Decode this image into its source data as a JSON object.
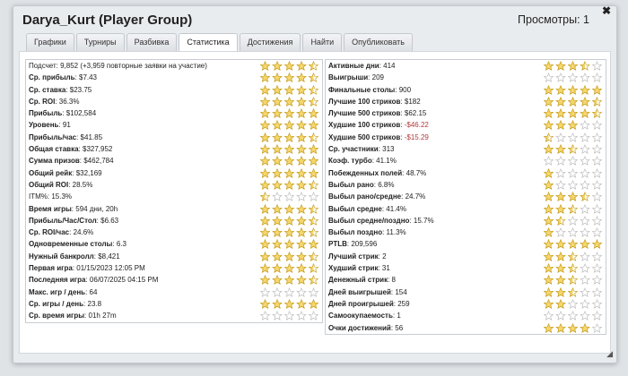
{
  "window": {
    "title": "Darya_Kurt (Player Group)",
    "views": "Просмотры: 1",
    "close_icon": "✖"
  },
  "tabs": [
    {
      "label": "Графики",
      "active": false
    },
    {
      "label": "Турниры",
      "active": false
    },
    {
      "label": "Разбивка",
      "active": false
    },
    {
      "label": "Статистика",
      "active": true
    },
    {
      "label": "Достижения",
      "active": false
    },
    {
      "label": "Найти",
      "active": false
    },
    {
      "label": "Опубликовать",
      "active": false
    }
  ],
  "left": [
    {
      "label": "Подсчет",
      "value": "9,852 (+3,959 повторные заявки на участие)",
      "bold": false,
      "rating": 4.5
    },
    {
      "label": "Ср. прибыль",
      "value": "$7.43",
      "bold": true,
      "rating": 4.5
    },
    {
      "label": "Ср. ставка",
      "value": "$23.75",
      "bold": true,
      "rating": 4.5
    },
    {
      "label": "Ср. ROI",
      "value": "36.3%",
      "bold": true,
      "rating": 4.5
    },
    {
      "label": "Прибыль",
      "value": "$102,584",
      "bold": true,
      "rating": 5
    },
    {
      "label": "Уровень",
      "value": "91",
      "bold": true,
      "rating": 5
    },
    {
      "label": "Прибыль/час",
      "value": "$41.85",
      "bold": true,
      "rating": 4.5
    },
    {
      "label": "Общая ставка",
      "value": "$327,952",
      "bold": true,
      "rating": 5
    },
    {
      "label": "Сумма призов",
      "value": "$462,784",
      "bold": true,
      "rating": 5
    },
    {
      "label": "Общий рейк",
      "value": "$32,169",
      "bold": true,
      "rating": 5
    },
    {
      "label": "Общий ROI",
      "value": "28.5%",
      "bold": true,
      "rating": 4.5
    },
    {
      "label": "ITM%",
      "value": "15.3%",
      "bold": false,
      "rating": 0.5
    },
    {
      "label": "Время игры",
      "value": "594 дни, 20h",
      "bold": true,
      "rating": 4.5
    },
    {
      "label": "Прибыль/Час/Стол",
      "value": "$6.63",
      "bold": true,
      "rating": 4.5
    },
    {
      "label": "Ср. ROI/час",
      "value": "24.6%",
      "bold": true,
      "rating": 4.5
    },
    {
      "label": "Одновременные столы",
      "value": "6.3",
      "bold": true,
      "rating": 5
    },
    {
      "label": "Нужный банкролл",
      "value": "$8,421",
      "bold": true,
      "rating": 4.5
    },
    {
      "label": "Первая игра",
      "value": "01/15/2023 12:05 PM",
      "bold": true,
      "rating": 4.5
    },
    {
      "label": "Последняя игра",
      "value": "06/07/2025 04:15 PM",
      "bold": true,
      "rating": 4.5
    },
    {
      "label": "Макс. игр / день",
      "value": "64",
      "bold": true,
      "rating": 0
    },
    {
      "label": "Ср. игры / день",
      "value": "23.8",
      "bold": true,
      "rating": 5
    },
    {
      "label": "Ср. время игры",
      "value": "01h 27m",
      "bold": true,
      "rating": 0
    }
  ],
  "right": [
    {
      "label": "Активные дни",
      "value": "414",
      "negative": false,
      "rating": 3.5
    },
    {
      "label": "Выигрыши",
      "value": "209",
      "negative": false,
      "rating": 0
    },
    {
      "label": "Финальные столы",
      "value": "900",
      "negative": false,
      "rating": 5
    },
    {
      "label": "Лучшие 100 стриков",
      "value": "$182",
      "negative": false,
      "rating": 4.5
    },
    {
      "label": "Лучшие 500 стриков",
      "value": "$62.15",
      "negative": false,
      "rating": 4.5
    },
    {
      "label": "Худшие 100 стриков",
      "value": "-$46.22",
      "negative": true,
      "rating": 3
    },
    {
      "label": "Худшие 500 стриков",
      "value": "-$15.29",
      "negative": true,
      "rating": 0.5
    },
    {
      "label": "Ср. участники",
      "value": "313",
      "negative": false,
      "rating": 2.5
    },
    {
      "label": "Коэф. турбо",
      "value": "41.1%",
      "negative": false,
      "rating": 0
    },
    {
      "label": "Побежденных полей",
      "value": "48.7%",
      "negative": false,
      "rating": 1
    },
    {
      "label": "Выбыл рано",
      "value": "6.8%",
      "negative": false,
      "rating": 1
    },
    {
      "label": "Выбыл рано/средне",
      "value": "24.7%",
      "negative": false,
      "rating": 3.5
    },
    {
      "label": "Выбыл средне",
      "value": "41.4%",
      "negative": false,
      "rating": 2.5
    },
    {
      "label": "Выбыл средне/поздно",
      "value": "15.7%",
      "negative": false,
      "rating": 1.5
    },
    {
      "label": "Выбыл поздно",
      "value": "11.3%",
      "negative": false,
      "rating": 1
    },
    {
      "label": "PTLB",
      "value": "209,596",
      "negative": false,
      "rating": 5
    },
    {
      "label": "Лучший стрик",
      "value": "2",
      "negative": false,
      "rating": 2.5
    },
    {
      "label": "Худший стрик",
      "value": "31",
      "negative": false,
      "rating": 2.5
    },
    {
      "label": "Денежный стрик",
      "value": "8",
      "negative": false,
      "rating": 2.5
    },
    {
      "label": "Дней выигрышей",
      "value": "154",
      "negative": false,
      "rating": 2.5
    },
    {
      "label": "Дней проигрышей",
      "value": "259",
      "negative": false,
      "rating": 2
    },
    {
      "label": "Самоокупаемость",
      "value": "1",
      "negative": false,
      "rating": 0
    },
    {
      "label": "Очки достижений",
      "value": "56",
      "negative": false,
      "rating": 4
    }
  ],
  "colors": {
    "star_fill": "#f5d76e",
    "star_stroke": "#c9a227",
    "star_empty": "#ffffff",
    "empty_stroke": "#bdbdbd",
    "negative": "#b03a3a"
  }
}
